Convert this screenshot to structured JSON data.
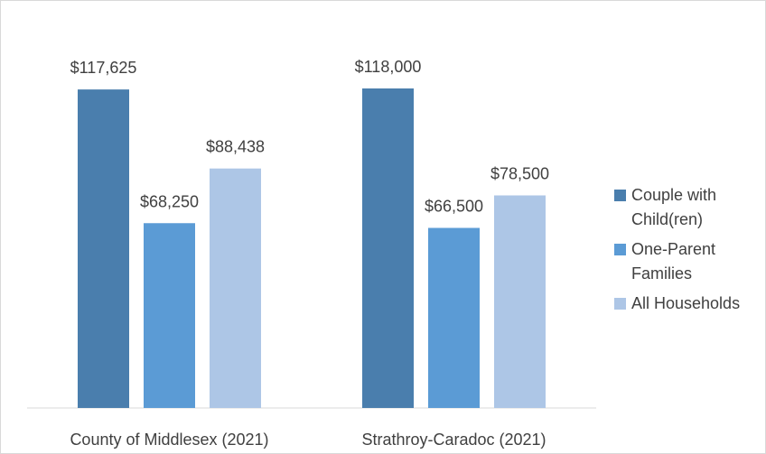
{
  "chart_data": {
    "type": "bar",
    "categories": [
      "County of Middlesex (2021)",
      "Strathroy-Caradoc (2021)"
    ],
    "series": [
      {
        "name": "Couple with Child(ren)",
        "color": "#4a7ead",
        "values": [
          117625,
          118000
        ],
        "value_labels": [
          "$117,625",
          "$118,000"
        ]
      },
      {
        "name": "One-Parent Families",
        "color": "#5b9bd5",
        "values": [
          68250,
          66500
        ],
        "value_labels": [
          "$68,250",
          "$66,500"
        ]
      },
      {
        "name": "All Households",
        "color": "#adc6e6",
        "values": [
          88438,
          78500
        ],
        "value_labels": [
          "$88,438",
          "$78,500"
        ]
      }
    ],
    "legend": "right"
  }
}
